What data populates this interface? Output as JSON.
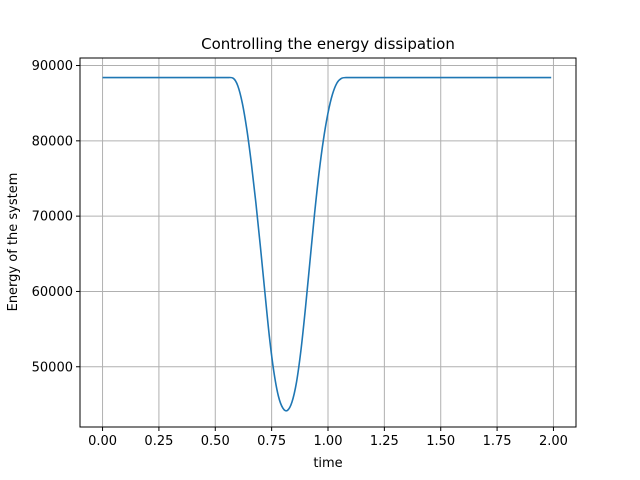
{
  "chart_data": {
    "type": "line",
    "title": "Controlling the energy dissipation",
    "xlabel": "time",
    "ylabel": "Energy of the system",
    "xlim": [
      -0.1,
      2.1
    ],
    "ylim": [
      42000,
      91000
    ],
    "grid": true,
    "legend": "none",
    "x_ticks": [
      0.0,
      0.25,
      0.5,
      0.75,
      1.0,
      1.25,
      1.5,
      1.75,
      2.0
    ],
    "x_tick_labels": [
      "0.00",
      "0.25",
      "0.50",
      "0.75",
      "1.00",
      "1.25",
      "1.50",
      "1.75",
      "2.00"
    ],
    "y_ticks": [
      50000,
      60000,
      70000,
      80000,
      90000
    ],
    "y_tick_labels": [
      "50000",
      "60000",
      "70000",
      "80000",
      "90000"
    ],
    "series": [
      {
        "color": "#1f77b4",
        "x": [
          0.0,
          0.25,
          0.5,
          0.55,
          0.58,
          0.6,
          0.62,
          0.64,
          0.66,
          0.68,
          0.7,
          0.72,
          0.74,
          0.76,
          0.78,
          0.8,
          0.82,
          0.84,
          0.86,
          0.88,
          0.9,
          0.92,
          0.94,
          0.96,
          0.98,
          1.0,
          1.02,
          1.04,
          1.06,
          1.08,
          1.1,
          1.25,
          1.5,
          1.75,
          1.99
        ],
        "y": [
          88400,
          88400,
          88400,
          88400,
          88300,
          87300,
          85000,
          81500,
          77000,
          71800,
          66000,
          59900,
          54000,
          49300,
          46100,
          44500,
          44200,
          45300,
          47900,
          52200,
          57800,
          64000,
          70200,
          75700,
          80200,
          83700,
          86200,
          87700,
          88300,
          88400,
          88400,
          88400,
          88400,
          88400,
          88400
        ]
      }
    ]
  }
}
